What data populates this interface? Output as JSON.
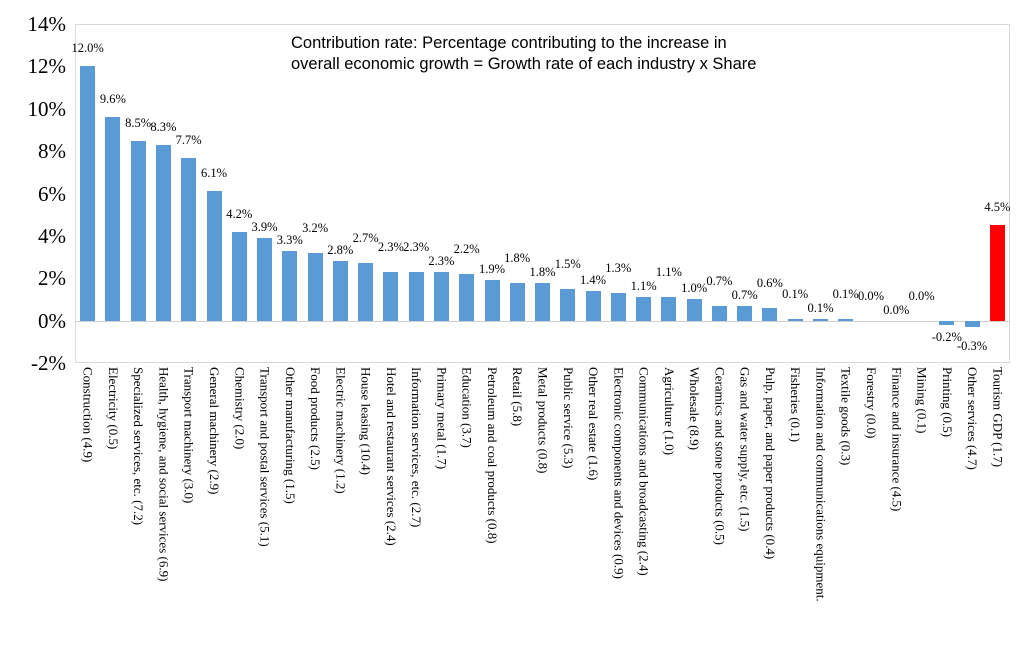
{
  "chart_data": {
    "type": "bar",
    "title": "Contribution rate: Percentage contributing to the increase in overall economic growth = Growth rate of each industry x Share",
    "title_lines": [
      "Contribution rate: Percentage contributing to the increase in",
      "overall economic growth = Growth rate of each industry x Share"
    ],
    "categories": [
      "Construction (4.9)",
      "Electricity (0.5)",
      "Specialized services, etc. (7.2)",
      "Health, hygiene, and social services (6.9)",
      "Transport machinery (3.0)",
      "General machinery (2.9)",
      "Chemistry (2.0)",
      "Transport and postal services (5.1)",
      "Other manufacturing (1.5)",
      "Food products (2.5)",
      "Electric machinery (1.2)",
      "House leasing (10.4)",
      "Hotel and restaurant services (2.4)",
      "Information services, etc. (2.7)",
      "Primary metal (1.7)",
      "Education (3.7)",
      "Petroleum and coal products (0.8)",
      "Retail (5.8)",
      "Metal products (0.8)",
      "Public service (5.3)",
      "Other real estate (1.6)",
      "Electronic components and devices (0.9)",
      "Communications and broadcasting (2.4)",
      "Agriculture (1.0)",
      "Wholesale (8.9)",
      "Ceramics and stone products (0.5)",
      "Gas and water supply, etc. (1.5)",
      "Pulp, paper, and paper products (0.4)",
      "Fisheries (0.1)",
      "Information and communications equipment.",
      "Textile goods (0.3)",
      "Forestry (0.0)",
      "Finance and insurance (4.5)",
      "Mining (0.1)",
      "Printing (0.5)",
      "Other services (4.7)",
      "Tourism GDP (1.7)"
    ],
    "values": [
      12.0,
      9.6,
      8.5,
      8.3,
      7.7,
      6.1,
      4.2,
      3.9,
      3.3,
      3.2,
      2.8,
      2.7,
      2.3,
      2.3,
      2.3,
      2.2,
      1.9,
      1.8,
      1.8,
      1.5,
      1.4,
      1.3,
      1.1,
      1.1,
      1.0,
      0.7,
      0.7,
      0.6,
      0.1,
      0.1,
      0.1,
      0.0,
      0.0,
      0.0,
      -0.2,
      -0.3,
      4.5
    ],
    "data_labels": [
      "12.0%",
      "9.6%",
      "8.5%",
      "8.3%",
      "7.7%",
      "6.1%",
      "4.2%",
      "3.9%",
      "3.3%",
      "3.2%",
      "2.8%",
      "2.7%",
      "2.3%",
      "2.3%",
      "2.3%",
      "2.2%",
      "1.9%",
      "1.8%",
      "1.8%",
      "1.5%",
      "1.4%",
      "1.3%",
      "1.1%",
      "1.1%",
      "1.0%",
      "0.7%",
      "0.7%",
      "0.6%",
      "0.1%",
      "0.1%",
      "0.1%",
      "0.0%",
      "0.0%",
      "0.0%",
      "-0.2%",
      "-0.3%",
      "4.5%"
    ],
    "label_stagger": [
      0,
      0,
      0,
      0,
      0,
      0,
      0,
      0,
      0,
      1,
      0,
      1,
      1,
      1,
      0,
      1,
      0,
      1,
      0,
      1,
      0,
      1,
      0,
      1,
      0,
      1,
      0,
      1,
      1,
      0,
      1,
      1,
      0,
      1,
      0,
      1,
      0
    ],
    "y_ticks": [
      "14%",
      "12%",
      "10%",
      "8%",
      "6%",
      "4%",
      "2%",
      "0%",
      "-2%"
    ],
    "y_tick_values": [
      14,
      12,
      10,
      8,
      6,
      4,
      2,
      0,
      -2
    ],
    "ylim": [
      -2,
      14
    ],
    "grid": false,
    "legend": "none",
    "highlight_index": 36,
    "colors": {
      "bar": "#5B9BD5",
      "highlight": "#FF0000",
      "axis_line": "#CFCFCF",
      "plot_border": "#D9D9D9",
      "text": "#000000"
    }
  }
}
